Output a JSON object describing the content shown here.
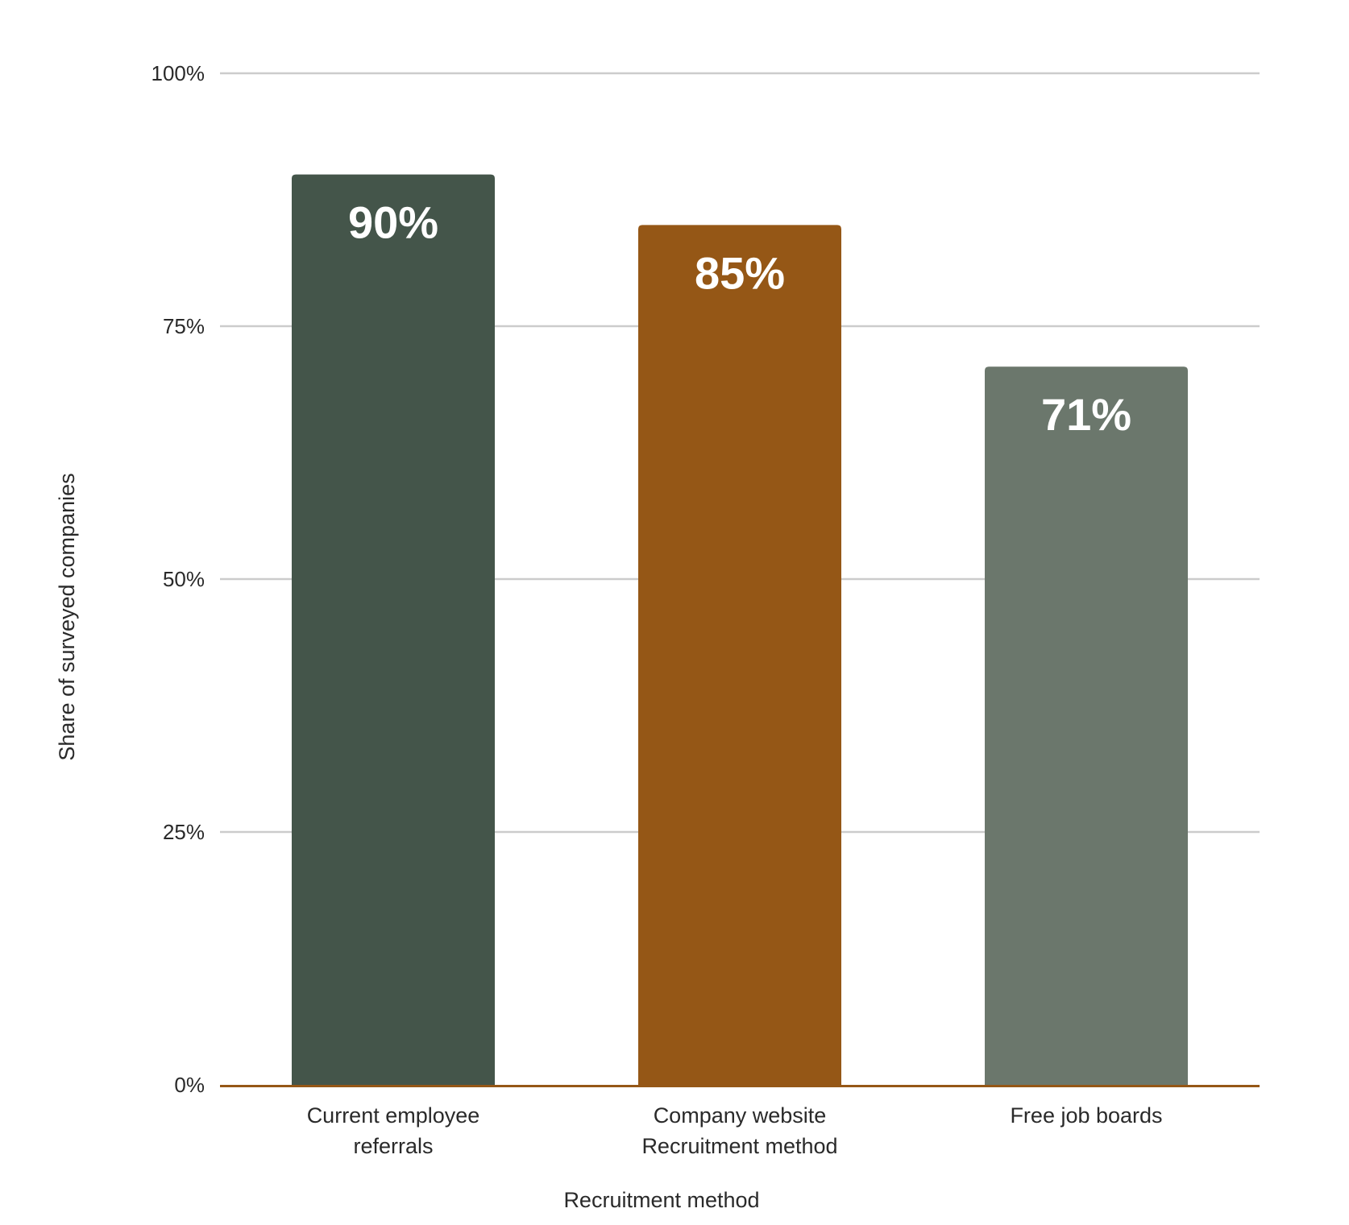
{
  "chart_data": {
    "type": "bar",
    "title": "",
    "xlabel": "Recruitment method",
    "ylabel": "Share of surveyed companies",
    "ylim": [
      0,
      100
    ],
    "yticks": [
      0,
      25,
      50,
      75,
      100
    ],
    "ytick_labels": [
      "0%",
      "25%",
      "50%",
      "75%",
      "100%"
    ],
    "categories": [
      "Current employee referrals",
      "Company website",
      "Free job boards"
    ],
    "category_label_lines": [
      [
        "Current employee",
        "referrals"
      ],
      [
        "Company website",
        "Recruitment method"
      ],
      [
        "Free job boards"
      ]
    ],
    "values": [
      90,
      85,
      71
    ],
    "data_labels": [
      "90%",
      "85%",
      "71%"
    ],
    "bar_colors": [
      "#44554a",
      "#955716",
      "#6b776c"
    ],
    "baseline_color": "#955716",
    "grid": true,
    "grid_color": "#cccccc",
    "legend": "none"
  }
}
